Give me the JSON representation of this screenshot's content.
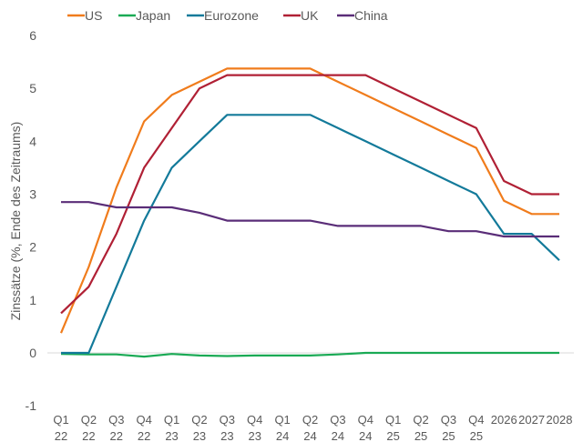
{
  "chart_data": {
    "type": "line",
    "title": "",
    "xlabel": "",
    "ylabel": "Zinssätze (%, Ende des Zeitraums)",
    "ylim": [
      -1,
      6
    ],
    "yticks": [
      -1,
      0,
      1,
      2,
      3,
      4,
      5,
      6
    ],
    "grid": false,
    "legend_position": "top-left",
    "categories": [
      [
        "Q1",
        "22"
      ],
      [
        "Q2",
        "22"
      ],
      [
        "Q3",
        "22"
      ],
      [
        "Q4",
        "22"
      ],
      [
        "Q1",
        "23"
      ],
      [
        "Q2",
        "23"
      ],
      [
        "Q3",
        "23"
      ],
      [
        "Q4",
        "23"
      ],
      [
        "Q1",
        "24"
      ],
      [
        "Q2",
        "24"
      ],
      [
        "Q3",
        "24"
      ],
      [
        "Q4",
        "24"
      ],
      [
        "Q1",
        "25"
      ],
      [
        "Q2",
        "25"
      ],
      [
        "Q3",
        "25"
      ],
      [
        "Q4",
        "25"
      ],
      [
        "2026",
        ""
      ],
      [
        "2027",
        ""
      ],
      [
        "2028",
        ""
      ]
    ],
    "series": [
      {
        "name": "US",
        "color": "#f07c1c",
        "values": [
          0.375,
          1.625,
          3.125,
          4.375,
          4.875,
          5.125,
          5.375,
          5.375,
          5.375,
          5.375,
          5.125,
          4.875,
          4.625,
          4.375,
          4.125,
          3.875,
          2.875,
          2.625,
          2.625
        ]
      },
      {
        "name": "Japan",
        "color": "#1aaa55",
        "values": [
          -0.02,
          -0.03,
          -0.03,
          -0.07,
          -0.02,
          -0.05,
          -0.06,
          -0.05,
          -0.05,
          -0.05,
          -0.03,
          0,
          0,
          0,
          0,
          0,
          0,
          0,
          0
        ]
      },
      {
        "name": "Eurozone",
        "color": "#137a9a",
        "values": [
          0,
          0,
          1.25,
          2.5,
          3.5,
          4.0,
          4.5,
          4.5,
          4.5,
          4.5,
          4.25,
          4.0,
          3.75,
          3.5,
          3.25,
          3.0,
          2.25,
          2.25,
          1.75
        ]
      },
      {
        "name": "UK",
        "color": "#b02035",
        "values": [
          0.75,
          1.25,
          2.25,
          3.5,
          4.25,
          5.0,
          5.25,
          5.25,
          5.25,
          5.25,
          5.25,
          5.25,
          5.0,
          4.75,
          4.5,
          4.25,
          3.25,
          3.0,
          3.0
        ]
      },
      {
        "name": "China",
        "color": "#5a2d78",
        "values": [
          2.85,
          2.85,
          2.75,
          2.75,
          2.75,
          2.65,
          2.5,
          2.5,
          2.5,
          2.5,
          2.4,
          2.4,
          2.4,
          2.4,
          2.3,
          2.3,
          2.2,
          2.2,
          2.2
        ]
      }
    ]
  }
}
